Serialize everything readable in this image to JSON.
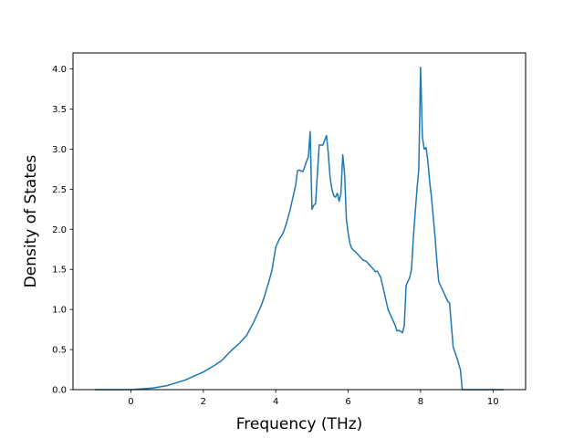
{
  "chart_data": {
    "type": "line",
    "title": "",
    "xlabel": "Frequency (THz)",
    "ylabel": "Density of States",
    "xlim": [
      -1.6,
      10.9
    ],
    "ylim": [
      0.0,
      4.2
    ],
    "xticks": [
      0,
      2,
      4,
      6,
      8,
      10
    ],
    "yticks": [
      0.0,
      0.5,
      1.0,
      1.5,
      2.0,
      2.5,
      3.0,
      3.5,
      4.0
    ],
    "xtick_labels": [
      "0",
      "2",
      "4",
      "6",
      "8",
      "10"
    ],
    "ytick_labels": [
      "0.0",
      "0.5",
      "1.0",
      "1.5",
      "2.0",
      "2.5",
      "3.0",
      "3.5",
      "4.0"
    ],
    "grid": false,
    "legend": "none",
    "series": [
      {
        "color": "#1f77b4",
        "x": [
          -1.0,
          0.0,
          0.3,
          0.6,
          1.0,
          1.5,
          2.0,
          2.3,
          2.5,
          2.8,
          3.0,
          3.2,
          3.4,
          3.6,
          3.7,
          3.75,
          3.8,
          3.9,
          4.0,
          4.1,
          4.2,
          4.3,
          4.4,
          4.5,
          4.55,
          4.6,
          4.65,
          4.7,
          4.75,
          4.8,
          4.85,
          4.9,
          4.95,
          5.0,
          5.05,
          5.1,
          5.15,
          5.2,
          5.3,
          5.4,
          5.45,
          5.5,
          5.55,
          5.6,
          5.65,
          5.7,
          5.75,
          5.8,
          5.85,
          5.9,
          5.95,
          6.0,
          6.05,
          6.1,
          6.2,
          6.3,
          6.4,
          6.5,
          6.6,
          6.7,
          6.75,
          6.8,
          6.9,
          7.0,
          7.1,
          7.2,
          7.3,
          7.35,
          7.4,
          7.5,
          7.55,
          7.6,
          7.65,
          7.7,
          7.75,
          7.8,
          7.85,
          7.9,
          7.95,
          8.0,
          8.05,
          8.1,
          8.15,
          8.2,
          8.25,
          8.3,
          8.35,
          8.4,
          8.45,
          8.5,
          8.55,
          8.6,
          8.65,
          8.7,
          8.75,
          8.8,
          8.9,
          9.0,
          9.1,
          9.15,
          9.2,
          9.25,
          9.3,
          9.35,
          9.4,
          10.3
        ],
        "y": [
          0.0,
          0.0,
          0.01,
          0.02,
          0.05,
          0.12,
          0.22,
          0.3,
          0.36,
          0.5,
          0.58,
          0.68,
          0.85,
          1.05,
          1.18,
          1.26,
          1.33,
          1.5,
          1.78,
          1.88,
          1.95,
          2.08,
          2.25,
          2.45,
          2.55,
          2.73,
          2.74,
          2.73,
          2.72,
          2.78,
          2.85,
          2.9,
          3.22,
          2.25,
          2.3,
          2.32,
          2.7,
          3.05,
          3.05,
          3.17,
          2.95,
          2.65,
          2.5,
          2.42,
          2.4,
          2.45,
          2.35,
          2.45,
          2.93,
          2.7,
          2.13,
          1.95,
          1.82,
          1.76,
          1.72,
          1.67,
          1.62,
          1.6,
          1.55,
          1.5,
          1.47,
          1.48,
          1.4,
          1.2,
          1.0,
          0.9,
          0.8,
          0.73,
          0.74,
          0.71,
          0.8,
          1.3,
          1.35,
          1.4,
          1.5,
          1.9,
          2.2,
          2.5,
          2.75,
          4.02,
          3.15,
          3.0,
          3.02,
          2.85,
          2.6,
          2.4,
          2.15,
          1.9,
          1.6,
          1.35,
          1.3,
          1.25,
          1.2,
          1.15,
          1.1,
          1.08,
          0.53,
          0.4,
          0.25,
          0.0,
          0.0,
          0.0,
          0.0,
          0.0,
          0.0,
          0.0
        ]
      }
    ]
  }
}
